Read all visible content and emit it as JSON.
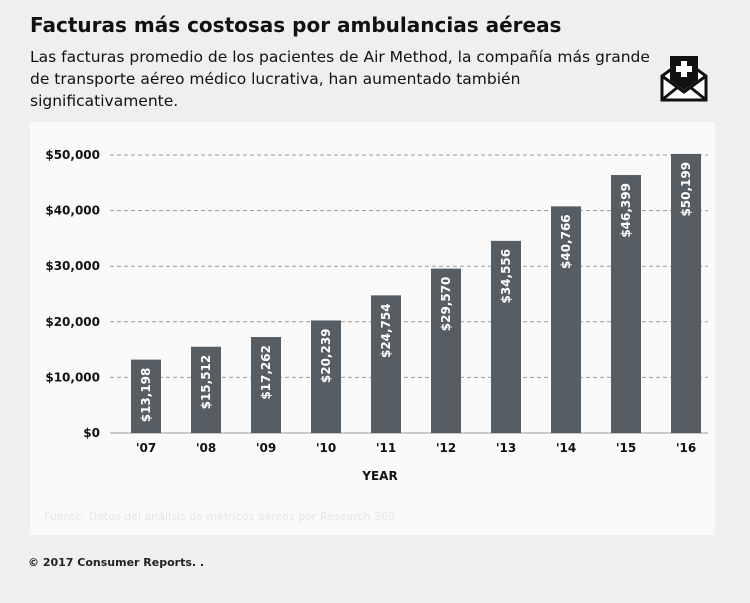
{
  "header": {
    "title": "Facturas más costosas por ambulancias aéreas",
    "subtitle": "Las facturas promedio de los pacientes de Air Method, la compañía más grande de transporte aéreo médico lucrativa, han aumentado también significativamente.",
    "icon": "envelope-medical-cross-icon"
  },
  "chart_data": {
    "type": "bar",
    "categories": [
      "'07",
      "'08",
      "'09",
      "'10",
      "'11",
      "'12",
      "'13",
      "'14",
      "'15",
      "'16"
    ],
    "values": [
      13198,
      15512,
      17262,
      20239,
      24754,
      29570,
      34556,
      40766,
      46399,
      50199
    ],
    "data_labels": [
      "$13,198",
      "$15,512",
      "$17,262",
      "$20,239",
      "$24,754",
      "$29,570",
      "$34,556",
      "$40,766",
      "$46,399",
      "$50,199"
    ],
    "xlabel": "YEAR",
    "ylabel": "",
    "ylim": [
      0,
      50000
    ],
    "yticks": [
      0,
      10000,
      20000,
      30000,
      40000,
      50000
    ],
    "ytick_labels": [
      "$0",
      "$10,000",
      "$20,000",
      "$30,000",
      "$40,000",
      "$50,000"
    ],
    "grid": true,
    "bar_color": "#565d63"
  },
  "footer": {
    "source": "Fuente: Datos del análisis de métricos aéreos por Research 360.",
    "copyright": "© 2017 Consumer Reports. ."
  }
}
